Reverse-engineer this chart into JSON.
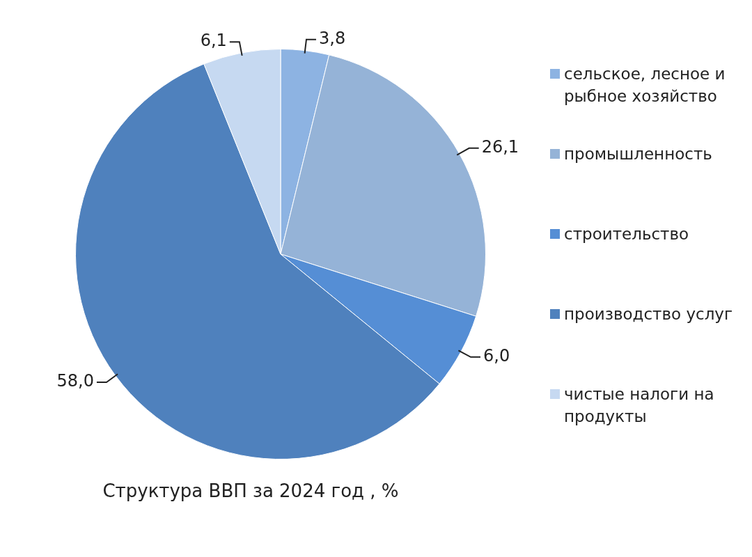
{
  "chart_data": {
    "type": "pie",
    "title": "Структура ВВП за 2024 год , %",
    "categories": [
      "сельское, лесное и рыбное хозяйство",
      "промышленность",
      "строительство",
      "производство услуг",
      "чистые налоги на продукты"
    ],
    "values": [
      3.8,
      26.1,
      6.0,
      58.0,
      6.1
    ],
    "value_labels": [
      "3,8",
      "26,1",
      "6,0",
      "58,0",
      "6,1"
    ],
    "colors": [
      "#8db3e2",
      "#95b3d7",
      "#558ed5",
      "#4f81bd",
      "#c6d9f1"
    ],
    "legend": "right"
  }
}
